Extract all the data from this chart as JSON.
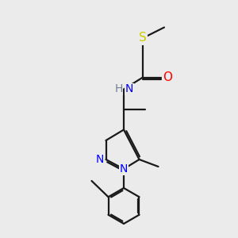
{
  "background_color": "#ebebeb",
  "atom_colors": {
    "C": "#1a1a1a",
    "N": "#0000ff",
    "O": "#ff0000",
    "S": "#cccc00",
    "H": "#808080"
  },
  "lw": 1.6,
  "dbo": 0.07,
  "fs": 10
}
